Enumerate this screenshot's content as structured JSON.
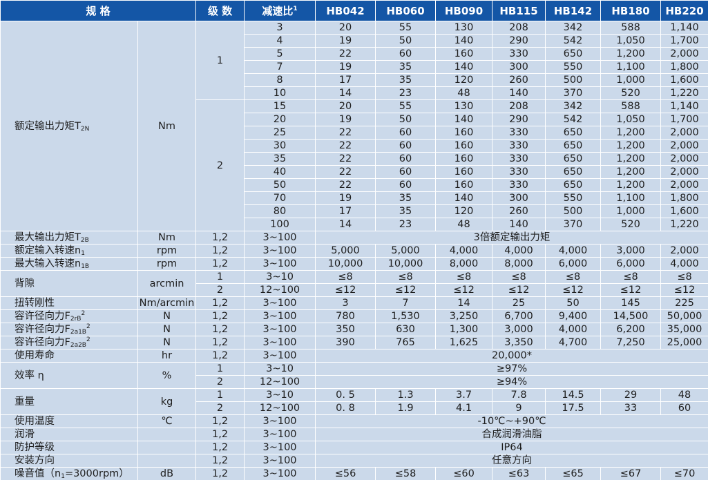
{
  "header": {
    "spec": "规 格",
    "stage": "级 数",
    "ratio": "减速比",
    "ratio_sup": "1",
    "models": [
      "HB042",
      "HB060",
      "HB090",
      "HB115",
      "HB142",
      "HB180",
      "HB220"
    ]
  },
  "rated_torque": {
    "name": "额定输出力矩T",
    "sub": "2N",
    "unit": "Nm",
    "stage1": "1",
    "stage2": "2",
    "rows": [
      {
        "ratio": "3",
        "values": [
          "20",
          "55",
          "130",
          "208",
          "342",
          "588",
          "1,140"
        ]
      },
      {
        "ratio": "4",
        "values": [
          "19",
          "50",
          "140",
          "290",
          "542",
          "1,050",
          "1,700"
        ]
      },
      {
        "ratio": "5",
        "values": [
          "22",
          "60",
          "160",
          "330",
          "650",
          "1,200",
          "2,000"
        ]
      },
      {
        "ratio": "7",
        "values": [
          "19",
          "35",
          "140",
          "300",
          "550",
          "1,100",
          "1,800"
        ]
      },
      {
        "ratio": "8",
        "values": [
          "17",
          "35",
          "120",
          "260",
          "500",
          "1,000",
          "1,600"
        ]
      },
      {
        "ratio": "10",
        "values": [
          "14",
          "23",
          "48",
          "140",
          "370",
          "520",
          "1,220"
        ]
      },
      {
        "ratio": "15",
        "values": [
          "20",
          "55",
          "130",
          "208",
          "342",
          "588",
          "1,140"
        ]
      },
      {
        "ratio": "20",
        "values": [
          "19",
          "50",
          "140",
          "290",
          "542",
          "1,050",
          "1,700"
        ]
      },
      {
        "ratio": "25",
        "values": [
          "22",
          "60",
          "160",
          "330",
          "650",
          "1,200",
          "2,000"
        ]
      },
      {
        "ratio": "30",
        "values": [
          "22",
          "60",
          "160",
          "330",
          "650",
          "1,200",
          "2,000"
        ]
      },
      {
        "ratio": "35",
        "values": [
          "22",
          "60",
          "160",
          "330",
          "650",
          "1,200",
          "2,000"
        ]
      },
      {
        "ratio": "40",
        "values": [
          "22",
          "60",
          "160",
          "330",
          "650",
          "1,200",
          "2,000"
        ]
      },
      {
        "ratio": "50",
        "values": [
          "22",
          "60",
          "160",
          "330",
          "650",
          "1,200",
          "2,000"
        ]
      },
      {
        "ratio": "70",
        "values": [
          "19",
          "35",
          "140",
          "300",
          "550",
          "1,100",
          "1,800"
        ]
      },
      {
        "ratio": "80",
        "values": [
          "17",
          "35",
          "120",
          "260",
          "500",
          "1,000",
          "1,600"
        ]
      },
      {
        "ratio": "100",
        "values": [
          "14",
          "23",
          "48",
          "140",
          "370",
          "520",
          "1,220"
        ]
      }
    ]
  },
  "max_torque": {
    "name": "最大输出力矩T",
    "sub": "2B",
    "unit": "Nm",
    "stage": "1,2",
    "ratio": "3~100",
    "value": "3倍额定输出力矩"
  },
  "rated_speed": {
    "name": "额定输入转速n",
    "sub": "1",
    "unit": "rpm",
    "stage": "1,2",
    "ratio": "3~100",
    "values": [
      "5,000",
      "5,000",
      "4,000",
      "4,000",
      "4,000",
      "3,000",
      "2,000"
    ]
  },
  "max_speed": {
    "name": "最大输入转速n",
    "sub": "1B",
    "unit": "rpm",
    "stage": "1,2",
    "ratio": "3~100",
    "values": [
      "10,000",
      "10,000",
      "8,000",
      "8,000",
      "6,000",
      "6,000",
      "4,000"
    ]
  },
  "backlash": {
    "name": "背隙",
    "unit": "arcmin",
    "rows": [
      {
        "stage": "1",
        "ratio": "3~10",
        "values": [
          "≤8",
          "≤8",
          "≤8",
          "≤8",
          "≤8",
          "≤8",
          "≤8"
        ]
      },
      {
        "stage": "2",
        "ratio": "12~100",
        "values": [
          "≤12",
          "≤12",
          "≤12",
          "≤12",
          "≤12",
          "≤12",
          "≤12"
        ]
      }
    ]
  },
  "stiffness": {
    "name": "扭转刚性",
    "unit": "Nm/arcmin",
    "stage": "1,2",
    "ratio": "3~100",
    "values": [
      "3",
      "7",
      "14",
      "25",
      "50",
      "145",
      "225"
    ]
  },
  "radial_force": {
    "name": "容许径向力F",
    "sub": "2rB",
    "sup": "2",
    "unit": "N",
    "stage": "1,2",
    "ratio": "3~100",
    "values": [
      "780",
      "1,530",
      "3,250",
      "6,700",
      "9,400",
      "14,500",
      "50,000"
    ]
  },
  "axial_force_1": {
    "name": "容许径向力F",
    "sub": "2a1B",
    "sup": "2",
    "unit": "N",
    "stage": "1,2",
    "ratio": "3~100",
    "values": [
      "350",
      "630",
      "1,300",
      "3,000",
      "4,000",
      "6,200",
      "35,000"
    ]
  },
  "axial_force_2": {
    "name": "容许径向力F",
    "sub": "2a2B",
    "sup": "2",
    "unit": "N",
    "stage": "1,2",
    "ratio": "3~100",
    "values": [
      "390",
      "765",
      "1,625",
      "3,350",
      "4,700",
      "7,250",
      "25,000"
    ]
  },
  "life": {
    "name": "使用寿命",
    "unit": "hr",
    "stage": "1,2",
    "ratio": "3~100",
    "value": "20,000*"
  },
  "efficiency": {
    "name": "效率 η",
    "unit": "%",
    "rows": [
      {
        "stage": "1",
        "ratio": "3~10",
        "value": "≥97%"
      },
      {
        "stage": "2",
        "ratio": "12~100",
        "value": "≥94%"
      }
    ]
  },
  "weight": {
    "name": "重量",
    "unit": "kg",
    "rows": [
      {
        "stage": "1",
        "ratio": "3~10",
        "values": [
          "0. 5",
          "1.3",
          "3.7",
          "7.8",
          "14.5",
          "29",
          "48"
        ]
      },
      {
        "stage": "2",
        "ratio": "12~100",
        "values": [
          "0. 8",
          "1.9",
          "4.1",
          "9",
          "17.5",
          "33",
          "60"
        ]
      }
    ]
  },
  "temperature": {
    "name": "使用温度",
    "unit": "℃",
    "stage": "1,2",
    "ratio": "3~100",
    "value": "-10℃~+90℃"
  },
  "lubrication": {
    "name": "润滑",
    "unit": "",
    "stage": "1,2",
    "ratio": "3~100",
    "value": "合成润滑油脂"
  },
  "protection": {
    "name": "防护等级",
    "unit": "",
    "stage": "1,2",
    "ratio": "3~100",
    "value": "IP64"
  },
  "mounting": {
    "name": "安装方向",
    "unit": "",
    "stage": "1,2",
    "ratio": "3~100",
    "value": "任意方向"
  },
  "noise": {
    "name_a": "噪音值（n",
    "sub": "1",
    "name_b": "=3000rpm）",
    "unit": "dB",
    "stage": "1,2",
    "ratio": "3~100",
    "values": [
      "≤56",
      "≤58",
      "≤60",
      "≤63",
      "≤65",
      "≤67",
      "≤70"
    ]
  },
  "colors": {
    "header": "#1456a6",
    "cell": "#cbd9ea",
    "separator": "#d24a4a"
  }
}
